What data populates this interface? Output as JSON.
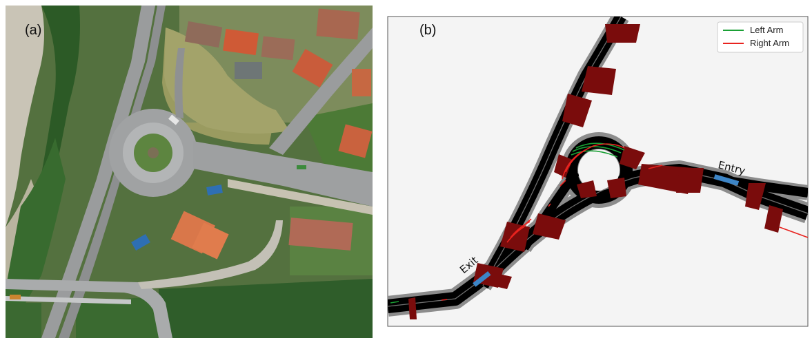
{
  "panels": {
    "a": {
      "label": "(a)"
    },
    "b": {
      "label": "(b)",
      "legend": [
        {
          "label": "Left Arm",
          "color": "#1aa035"
        },
        {
          "label": "Right Arm",
          "color": "#e8231f"
        }
      ],
      "annotations": {
        "entry": "Entry",
        "exit": "Exit"
      },
      "colors": {
        "background": "#f4f4f4",
        "road_edge": "#8c8c8c",
        "road": "#000000",
        "lane_marking": "#777777",
        "conflict_zone": "#7a0c0c",
        "vehicle": "#3d85c6"
      }
    }
  },
  "aerial_colors": {
    "forest": "#2f5d2a",
    "meadow": "#8a8f55",
    "gravel": "#c9c4b6",
    "asphalt": "#8b8d8e",
    "roof": "#c9623e"
  }
}
